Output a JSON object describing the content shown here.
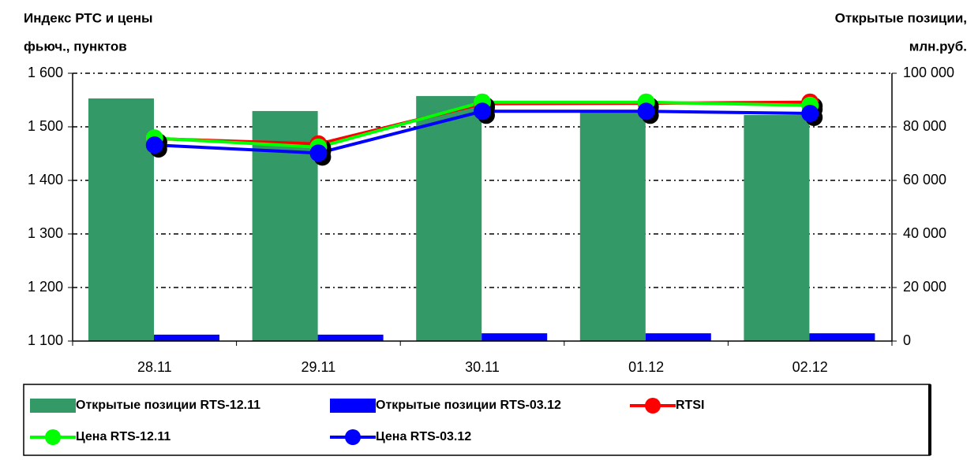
{
  "chart_data": {
    "type": "bar",
    "ylabel": [
      "Индекс РТС и цены",
      "фьюч., пунктов"
    ],
    "y2label": [
      "Открытые позиции,",
      "млн.руб."
    ],
    "categories": [
      "28.11",
      "29.11",
      "30.11",
      "01.12",
      "02.12"
    ],
    "series": [
      {
        "name": "Открытые позиции RTS-12.11",
        "type": "bar",
        "axis": "y2",
        "color": "#339966",
        "values": [
          90600,
          85900,
          91500,
          86000,
          84400
        ]
      },
      {
        "name": "Открытые позиции RTS-03.12",
        "type": "bar",
        "axis": "y2",
        "color": "#0000ff",
        "values": [
          2400,
          2400,
          2900,
          2900,
          2900
        ]
      },
      {
        "name": "RTSI",
        "type": "line",
        "color": "#ff0000",
        "values": [
          1478,
          1468,
          1543,
          1544,
          1546
        ]
      },
      {
        "name": "Цена RTS-12.11",
        "type": "line",
        "color": "#00ff00",
        "values": [
          1479,
          1462,
          1546,
          1546,
          1540
        ]
      },
      {
        "name": "Цена RTS-03.12",
        "type": "line",
        "color": "#0000ff",
        "values": [
          1466,
          1451,
          1529,
          1529,
          1525
        ]
      }
    ],
    "ylim": [
      1100,
      1600
    ],
    "yticks": [
      {
        "value": 1100,
        "label": "1 100"
      },
      {
        "value": 1200,
        "label": "1 200"
      },
      {
        "value": 1300,
        "label": "1 300"
      },
      {
        "value": 1400,
        "label": "1 400"
      },
      {
        "value": 1500,
        "label": "1 500"
      },
      {
        "value": 1600,
        "label": "1 600"
      }
    ],
    "y2lim": [
      0,
      100000
    ],
    "y2ticks": [
      0,
      {
        "value": 20000,
        "label": "20 000"
      },
      {
        "value": 40000,
        "label": "40 000"
      },
      {
        "value": 60000,
        "label": "60 000"
      },
      {
        "value": 80000,
        "label": "80 000"
      },
      {
        "value": 100000,
        "label": "100 000"
      }
    ],
    "grid": true
  }
}
